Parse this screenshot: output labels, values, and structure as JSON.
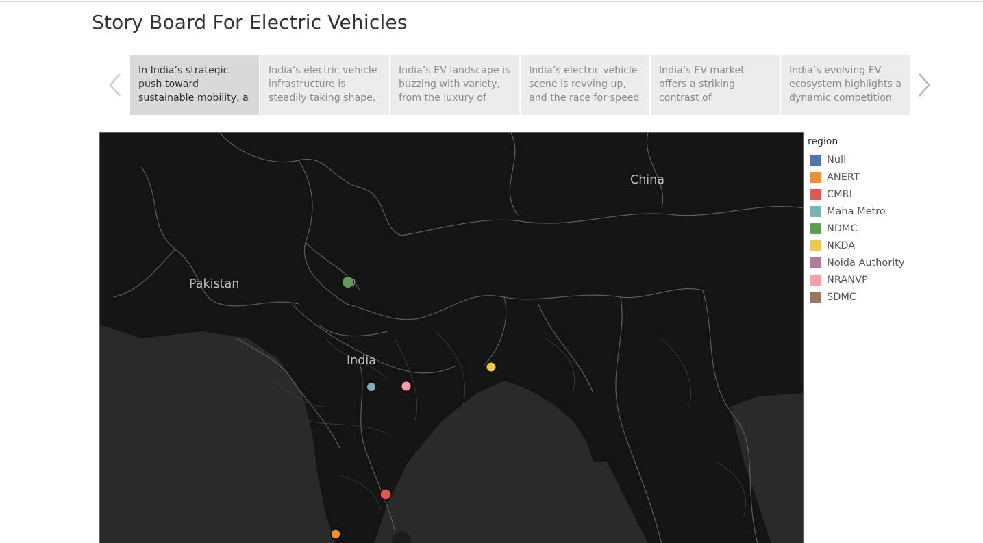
{
  "title": "Story Board For Electric Vehicles",
  "story_points": [
    {
      "text": "In India’s strategic push toward sustainable mobility, a"
    },
    {
      "text": "India’s electric vehicle infrastructure is steadily taking shape,"
    },
    {
      "text": "India’s EV landscape is buzzing with variety, from the luxury of"
    },
    {
      "text": "India’s electric vehicle scene is revving up, and the race for speed"
    },
    {
      "text": "India’s EV market offers a striking contrast of"
    },
    {
      "text": "India’s evolving EV ecosystem highlights a dynamic competition"
    }
  ],
  "nav": {
    "prev_icon": "chevron-left-icon",
    "next_icon": "chevron-right-icon"
  },
  "map": {
    "country_labels": {
      "china": "China",
      "pakistan": "Pakistan",
      "india": "India"
    },
    "colors": {
      "land": "#242424",
      "sea": "#2b2b2b",
      "border": "#6a6a6a",
      "label": "#bdbdbd"
    }
  },
  "legend": {
    "title": "region",
    "items": [
      {
        "label": "Null",
        "color": "#4e79a7"
      },
      {
        "label": "ANERT",
        "color": "#f28e2b"
      },
      {
        "label": "CMRL",
        "color": "#e15759"
      },
      {
        "label": "Maha Metro",
        "color": "#76b7b2"
      },
      {
        "label": "NDMC",
        "color": "#59a14f"
      },
      {
        "label": "NKDA",
        "color": "#edc948"
      },
      {
        "label": "Noida Authority",
        "color": "#b07aa1"
      },
      {
        "label": "NRANVP",
        "color": "#ff9da7"
      },
      {
        "label": "SDMC",
        "color": "#9c755f"
      }
    ]
  }
}
